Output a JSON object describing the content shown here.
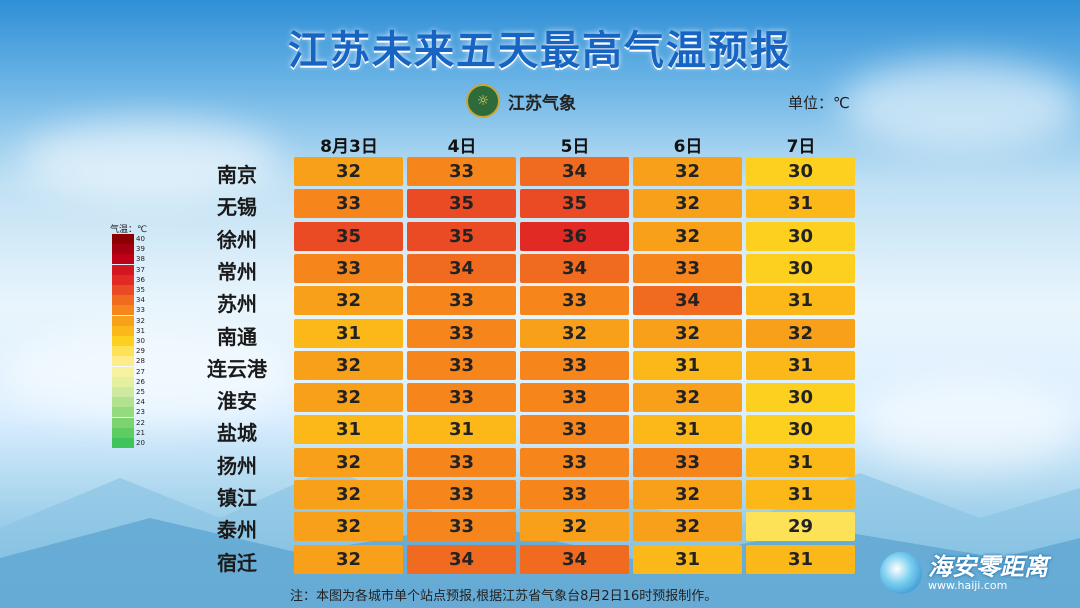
{
  "title": "江苏未来五天最高气温预报",
  "logo": {
    "text": "江苏气象"
  },
  "unit_label": "单位：℃",
  "legend": {
    "title": "气温：℃",
    "levels": [
      {
        "value": "40",
        "color": "#8b0000"
      },
      {
        "value": "39",
        "color": "#a50012"
      },
      {
        "value": "38",
        "color": "#c00018"
      },
      {
        "value": "37",
        "color": "#d4161e"
      },
      {
        "value": "36",
        "color": "#e12a24"
      },
      {
        "value": "35",
        "color": "#ea4a24"
      },
      {
        "value": "34",
        "color": "#f06a20"
      },
      {
        "value": "33",
        "color": "#f6861c"
      },
      {
        "value": "32",
        "color": "#f8a01a"
      },
      {
        "value": "31",
        "color": "#fbb818"
      },
      {
        "value": "30",
        "color": "#fdd020"
      },
      {
        "value": "29",
        "color": "#fde258"
      },
      {
        "value": "28",
        "color": "#fdec88"
      },
      {
        "value": "27",
        "color": "#f6f2a0"
      },
      {
        "value": "26",
        "color": "#e4f0a0"
      },
      {
        "value": "25",
        "color": "#cdeaa0"
      },
      {
        "value": "24",
        "color": "#b2e290"
      },
      {
        "value": "23",
        "color": "#96da80"
      },
      {
        "value": "22",
        "color": "#7cd470"
      },
      {
        "value": "21",
        "color": "#5fcc62"
      },
      {
        "value": "20",
        "color": "#3ec45a"
      }
    ]
  },
  "chart_data": {
    "type": "heatmap",
    "title": "江苏未来五天最高气温预报",
    "columns": [
      "8月3日",
      "4日",
      "5日",
      "6日",
      "7日"
    ],
    "rows": [
      "南京",
      "无锡",
      "徐州",
      "常州",
      "苏州",
      "南通",
      "连云港",
      "淮安",
      "盐城",
      "扬州",
      "镇江",
      "泰州",
      "宿迁"
    ],
    "values": [
      [
        32,
        33,
        34,
        32,
        30
      ],
      [
        33,
        35,
        35,
        32,
        31
      ],
      [
        35,
        35,
        36,
        32,
        30
      ],
      [
        33,
        34,
        34,
        33,
        30
      ],
      [
        32,
        33,
        33,
        34,
        31
      ],
      [
        31,
        33,
        32,
        32,
        32
      ],
      [
        32,
        33,
        33,
        31,
        31
      ],
      [
        32,
        33,
        33,
        32,
        30
      ],
      [
        31,
        31,
        33,
        31,
        30
      ],
      [
        32,
        33,
        33,
        33,
        31
      ],
      [
        32,
        33,
        33,
        32,
        31
      ],
      [
        32,
        33,
        32,
        32,
        29
      ],
      [
        32,
        34,
        34,
        31,
        31
      ]
    ],
    "unit": "℃"
  },
  "note": "注：本图为各城市单个站点预报,根据江苏省气象台8月2日16时预报制作。",
  "watermark": {
    "text": "海安零距离",
    "url": "www.haiji.com"
  }
}
